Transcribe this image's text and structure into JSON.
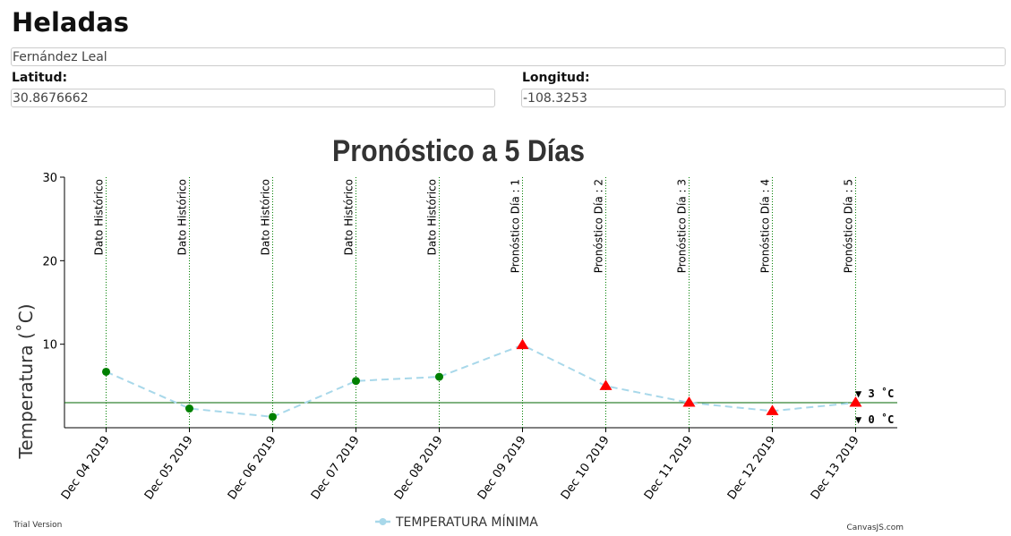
{
  "page": {
    "heading": "Heladas",
    "station_name": "Fernández Leal",
    "latitude_label": "Latitud:",
    "latitude_value": "30.8676662",
    "longitude_label": "Longitud:",
    "longitude_value": "-108.3253"
  },
  "chart_data": {
    "type": "line",
    "title": "Pronóstico a 5 Días",
    "ylabel": "Temperatura (˚C)",
    "xlabel": "",
    "ylim": [
      0,
      30
    ],
    "yticks": [
      10,
      20,
      30
    ],
    "grid": false,
    "categories": [
      "Dec 04 2019",
      "Dec 05 2019",
      "Dec 06 2019",
      "Dec 07 2019",
      "Dec 08 2019",
      "Dec 09 2019",
      "Dec 10 2019",
      "Dec 11 2019",
      "Dec 12 2019",
      "Dec 13 2019"
    ],
    "series": [
      {
        "name": "TEMPERATURA MÍNIMA",
        "line_color": "#a8d8ea",
        "line_style": "dashed",
        "values": [
          6.7,
          2.3,
          1.3,
          5.6,
          6.1,
          9.9,
          5.0,
          3.0,
          2.0,
          3.0
        ],
        "marker_types": [
          "circle",
          "circle",
          "circle",
          "circle",
          "circle",
          "triangle",
          "triangle",
          "triangle",
          "triangle",
          "triangle"
        ],
        "marker_colors": [
          "#008000",
          "#008000",
          "#008000",
          "#008000",
          "#008000",
          "#ff0000",
          "#ff0000",
          "#ff0000",
          "#ff0000",
          "#ff0000"
        ]
      }
    ],
    "vertical_lines": [
      "Dato Histórico",
      "Dato Histórico",
      "Dato Histórico",
      "Dato Histórico",
      "Dato Histórico",
      "Pronóstico Día : 1",
      "Pronóstico Día : 2",
      "Pronóstico Día : 3",
      "Pronóstico Día : 4",
      "Pronóstico Día : 5"
    ],
    "vertical_line_color": "#008000",
    "horizontal_lines": [
      {
        "value": 3,
        "label": "▼ 3 ˚C",
        "color": "#006400"
      },
      {
        "value": 0,
        "label": "▼ 0 ˚C",
        "color": "#000000"
      }
    ],
    "legend": {
      "position": "bottom",
      "text": "TEMPERATURA MÍNIMA"
    },
    "credits": {
      "left": "Trial Version",
      "right": "CanvasJS.com"
    }
  }
}
